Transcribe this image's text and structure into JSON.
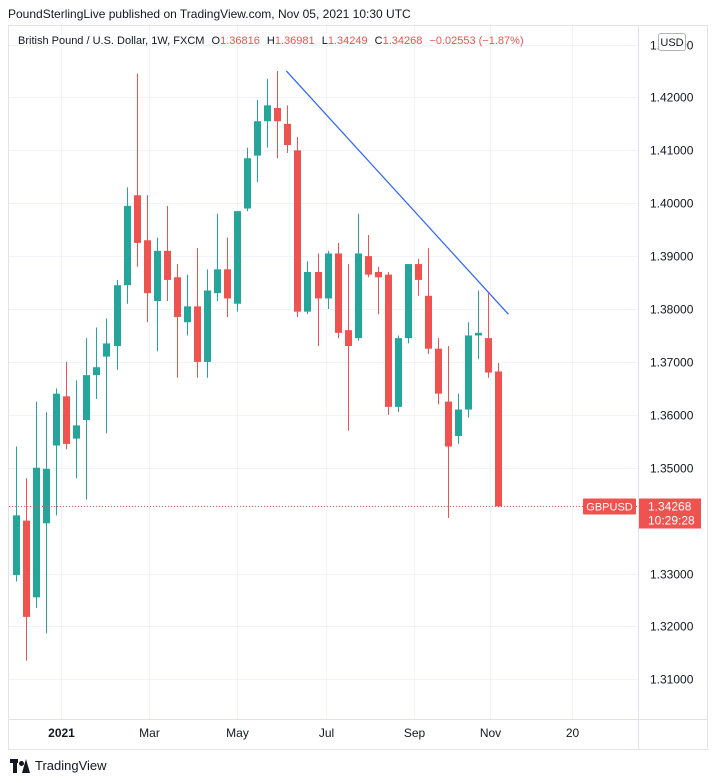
{
  "header": {
    "text": "PoundSterlingLive published on TradingView.com, Nov 05, 2021 10:30 UTC"
  },
  "legend": {
    "symbol": "British Pound / U.S. Dollar, 1W, FXCM",
    "open_label": "O",
    "open": "1.36816",
    "high_label": "H",
    "high": "1.36981",
    "low_label": "L",
    "low": "1.34249",
    "close_label": "C",
    "close": "1.34268",
    "change": "−0.02553 (−1.87%)"
  },
  "currency_button": "USD",
  "footer": {
    "brand": "TradingView"
  },
  "colors": {
    "up": "#26a69a",
    "down": "#ef5350",
    "trendline": "#2962ff",
    "grid": "#f0f3fa"
  },
  "chart_data": {
    "type": "candlestick",
    "ylim": [
      1.3025,
      1.4335
    ],
    "yticks": [
      1.43,
      1.42,
      1.41,
      1.4,
      1.39,
      1.38,
      1.37,
      1.36,
      1.35,
      1.33,
      1.32,
      1.31
    ],
    "ytick_labels": [
      "1.43000",
      "1.42000",
      "1.41000",
      "1.40000",
      "1.39000",
      "1.38000",
      "1.37000",
      "1.36000",
      "1.35000",
      "1.33000",
      "1.32000",
      "1.31000"
    ],
    "x_ticks": [
      {
        "index": 4.5,
        "label": "2021",
        "bold": true
      },
      {
        "index": 13.2,
        "label": "Mar",
        "bold": false
      },
      {
        "index": 22.0,
        "label": "May",
        "bold": false
      },
      {
        "index": 30.8,
        "label": "Jul",
        "bold": false
      },
      {
        "index": 39.6,
        "label": "Sep",
        "bold": false
      },
      {
        "index": 47.2,
        "label": "Nov",
        "bold": false
      },
      {
        "index": 55.3,
        "label": "20",
        "bold": false
      }
    ],
    "candles": [
      {
        "o": 1.3297,
        "h": 1.354,
        "l": 1.3285,
        "c": 1.341
      },
      {
        "o": 1.34,
        "h": 1.348,
        "l": 1.3135,
        "c": 1.3218
      },
      {
        "o": 1.3255,
        "h": 1.3625,
        "l": 1.3235,
        "c": 1.35
      },
      {
        "o": 1.3395,
        "h": 1.3605,
        "l": 1.3187,
        "c": 1.3498
      },
      {
        "o": 1.3542,
        "h": 1.365,
        "l": 1.341,
        "c": 1.364
      },
      {
        "o": 1.3635,
        "h": 1.37,
        "l": 1.3535,
        "c": 1.3545
      },
      {
        "o": 1.3555,
        "h": 1.3665,
        "l": 1.348,
        "c": 1.358
      },
      {
        "o": 1.359,
        "h": 1.3745,
        "l": 1.344,
        "c": 1.3675
      },
      {
        "o": 1.3675,
        "h": 1.3765,
        "l": 1.363,
        "c": 1.369
      },
      {
        "o": 1.371,
        "h": 1.3782,
        "l": 1.3565,
        "c": 1.3735
      },
      {
        "o": 1.373,
        "h": 1.3855,
        "l": 1.3685,
        "c": 1.3845
      },
      {
        "o": 1.3845,
        "h": 1.403,
        "l": 1.381,
        "c": 1.3995
      },
      {
        "o": 1.4015,
        "h": 1.4245,
        "l": 1.388,
        "c": 1.3925
      },
      {
        "o": 1.393,
        "h": 1.4015,
        "l": 1.3775,
        "c": 1.383
      },
      {
        "o": 1.3815,
        "h": 1.3935,
        "l": 1.372,
        "c": 1.391
      },
      {
        "o": 1.391,
        "h": 1.3995,
        "l": 1.3815,
        "c": 1.3855
      },
      {
        "o": 1.386,
        "h": 1.3885,
        "l": 1.367,
        "c": 1.3785
      },
      {
        "o": 1.3775,
        "h": 1.3865,
        "l": 1.375,
        "c": 1.3805
      },
      {
        "o": 1.3805,
        "h": 1.3915,
        "l": 1.367,
        "c": 1.37
      },
      {
        "o": 1.37,
        "h": 1.3875,
        "l": 1.367,
        "c": 1.3835
      },
      {
        "o": 1.383,
        "h": 1.398,
        "l": 1.3815,
        "c": 1.3875
      },
      {
        "o": 1.3875,
        "h": 1.3935,
        "l": 1.3785,
        "c": 1.382
      },
      {
        "o": 1.381,
        "h": 1.3985,
        "l": 1.3795,
        "c": 1.3985
      },
      {
        "o": 1.399,
        "h": 1.4105,
        "l": 1.3985,
        "c": 1.4085
      },
      {
        "o": 1.409,
        "h": 1.4195,
        "l": 1.404,
        "c": 1.4155
      },
      {
        "o": 1.4155,
        "h": 1.4235,
        "l": 1.4105,
        "c": 1.4185
      },
      {
        "o": 1.418,
        "h": 1.425,
        "l": 1.4085,
        "c": 1.4155
      },
      {
        "o": 1.415,
        "h": 1.4185,
        "l": 1.4095,
        "c": 1.411
      },
      {
        "o": 1.41,
        "h": 1.4125,
        "l": 1.3785,
        "c": 1.3795
      },
      {
        "o": 1.3795,
        "h": 1.389,
        "l": 1.379,
        "c": 1.387
      },
      {
        "o": 1.387,
        "h": 1.3905,
        "l": 1.373,
        "c": 1.382
      },
      {
        "o": 1.382,
        "h": 1.391,
        "l": 1.38,
        "c": 1.3905
      },
      {
        "o": 1.3905,
        "h": 1.3925,
        "l": 1.3745,
        "c": 1.3755
      },
      {
        "o": 1.376,
        "h": 1.3885,
        "l": 1.357,
        "c": 1.373
      },
      {
        "o": 1.3745,
        "h": 1.398,
        "l": 1.374,
        "c": 1.3905
      },
      {
        "o": 1.39,
        "h": 1.394,
        "l": 1.386,
        "c": 1.3865
      },
      {
        "o": 1.387,
        "h": 1.388,
        "l": 1.379,
        "c": 1.386
      },
      {
        "o": 1.3865,
        "h": 1.387,
        "l": 1.36,
        "c": 1.3615
      },
      {
        "o": 1.3615,
        "h": 1.375,
        "l": 1.3605,
        "c": 1.3745
      },
      {
        "o": 1.3745,
        "h": 1.388,
        "l": 1.3735,
        "c": 1.3885
      },
      {
        "o": 1.3885,
        "h": 1.3895,
        "l": 1.3825,
        "c": 1.3855
      },
      {
        "o": 1.3825,
        "h": 1.3915,
        "l": 1.3715,
        "c": 1.3725
      },
      {
        "o": 1.3725,
        "h": 1.3745,
        "l": 1.362,
        "c": 1.364
      },
      {
        "o": 1.3625,
        "h": 1.373,
        "l": 1.3405,
        "c": 1.354
      },
      {
        "o": 1.356,
        "h": 1.364,
        "l": 1.3545,
        "c": 1.361
      },
      {
        "o": 1.361,
        "h": 1.3775,
        "l": 1.3595,
        "c": 1.375
      },
      {
        "o": 1.375,
        "h": 1.3835,
        "l": 1.3705,
        "c": 1.3755
      },
      {
        "o": 1.3745,
        "h": 1.383,
        "l": 1.367,
        "c": 1.368
      },
      {
        "o": 1.3682,
        "h": 1.3698,
        "l": 1.3425,
        "c": 1.3427
      }
    ],
    "trendline": {
      "start": {
        "index": 26.9,
        "value": 1.425
      },
      "end": {
        "index": 49.0,
        "value": 1.379
      }
    },
    "current_price": {
      "symbol": "GBPUSD",
      "price": "1.34268",
      "value": 1.34268,
      "countdown": "10:29:28"
    }
  }
}
